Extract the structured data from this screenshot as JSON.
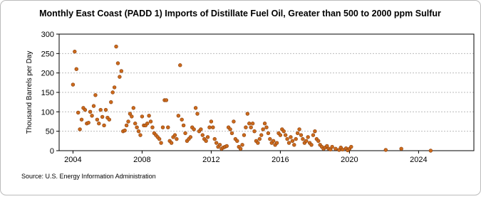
{
  "chart_data": {
    "type": "scatter",
    "title": "Monthly East Coast (PADD 1) Imports of Distillate Fuel Oil, Greater than 500 to 2000 ppm Sulfur",
    "y_label": "Thousand Barrels per Day",
    "source": "Source: U.S. Energy Information Administration",
    "color": "#cc6a1c",
    "grid": true,
    "xlim": [
      2003.2,
      2027.2
    ],
    "ylim": [
      0,
      300
    ],
    "xticks": [
      2004,
      2008,
      2012,
      2016,
      2020,
      2024
    ],
    "yticks": [
      0,
      50,
      100,
      150,
      200,
      250,
      300
    ],
    "x": [
      2004.0,
      2004.1,
      2004.2,
      2004.3,
      2004.4,
      2004.5,
      2004.6,
      2004.7,
      2004.8,
      2004.9,
      2005.0,
      2005.1,
      2005.2,
      2005.3,
      2005.4,
      2005.5,
      2005.6,
      2005.7,
      2005.8,
      2005.9,
      2006.0,
      2006.1,
      2006.2,
      2006.3,
      2006.4,
      2006.5,
      2006.6,
      2006.7,
      2006.8,
      2006.9,
      2007.0,
      2007.1,
      2007.2,
      2007.3,
      2007.4,
      2007.5,
      2007.6,
      2007.7,
      2007.8,
      2007.9,
      2008.0,
      2008.1,
      2008.2,
      2008.3,
      2008.4,
      2008.5,
      2008.6,
      2008.7,
      2008.8,
      2008.9,
      2009.0,
      2009.1,
      2009.2,
      2009.3,
      2009.4,
      2009.5,
      2009.6,
      2009.7,
      2009.8,
      2009.9,
      2010.0,
      2010.1,
      2010.2,
      2010.3,
      2010.4,
      2010.5,
      2010.6,
      2010.7,
      2010.8,
      2010.9,
      2011.0,
      2011.1,
      2011.2,
      2011.3,
      2011.4,
      2011.5,
      2011.6,
      2011.7,
      2011.8,
      2011.9,
      2012.0,
      2012.1,
      2012.2,
      2012.3,
      2012.4,
      2012.5,
      2012.6,
      2012.7,
      2012.8,
      2012.9,
      2013.0,
      2013.1,
      2013.2,
      2013.3,
      2013.4,
      2013.5,
      2013.6,
      2013.7,
      2013.8,
      2013.9,
      2014.0,
      2014.1,
      2014.2,
      2014.3,
      2014.4,
      2014.5,
      2014.6,
      2014.7,
      2014.8,
      2014.9,
      2015.0,
      2015.1,
      2015.2,
      2015.3,
      2015.4,
      2015.5,
      2015.6,
      2015.7,
      2015.8,
      2015.9,
      2016.0,
      2016.1,
      2016.2,
      2016.3,
      2016.4,
      2016.5,
      2016.6,
      2016.7,
      2016.8,
      2016.9,
      2017.0,
      2017.1,
      2017.2,
      2017.3,
      2017.4,
      2017.5,
      2017.6,
      2017.7,
      2017.8,
      2017.9,
      2018.0,
      2018.1,
      2018.2,
      2018.3,
      2018.4,
      2018.5,
      2018.6,
      2018.7,
      2018.8,
      2018.9,
      2019.0,
      2019.2,
      2019.4,
      2019.5,
      2019.6,
      2019.8,
      2019.9,
      2020.0,
      2020.1,
      2022.1,
      2023.0,
      2024.7
    ],
    "values": [
      170,
      255,
      210,
      98,
      55,
      80,
      110,
      105,
      70,
      72,
      100,
      90,
      115,
      143,
      80,
      70,
      105,
      87,
      65,
      105,
      85,
      80,
      125,
      150,
      163,
      268,
      225,
      190,
      205,
      50,
      52,
      65,
      75,
      95,
      88,
      110,
      70,
      60,
      50,
      40,
      88,
      65,
      65,
      70,
      90,
      75,
      60,
      45,
      40,
      35,
      30,
      20,
      60,
      130,
      130,
      60,
      25,
      20,
      35,
      40,
      30,
      90,
      220,
      80,
      65,
      45,
      25,
      30,
      35,
      60,
      55,
      110,
      95,
      50,
      55,
      40,
      30,
      25,
      35,
      60,
      75,
      60,
      30,
      20,
      10,
      15,
      5,
      8,
      10,
      12,
      60,
      55,
      45,
      75,
      30,
      25,
      10,
      5,
      15,
      40,
      60,
      95,
      70,
      60,
      70,
      50,
      25,
      20,
      30,
      40,
      55,
      70,
      60,
      45,
      30,
      20,
      25,
      15,
      20,
      45,
      40,
      55,
      50,
      40,
      30,
      20,
      35,
      25,
      15,
      30,
      45,
      55,
      40,
      30,
      20,
      25,
      35,
      20,
      15,
      40,
      50,
      30,
      25,
      15,
      10,
      5,
      8,
      12,
      5,
      3,
      10,
      5,
      2,
      8,
      3,
      6,
      1,
      5,
      10,
      2,
      5,
      0
    ]
  }
}
